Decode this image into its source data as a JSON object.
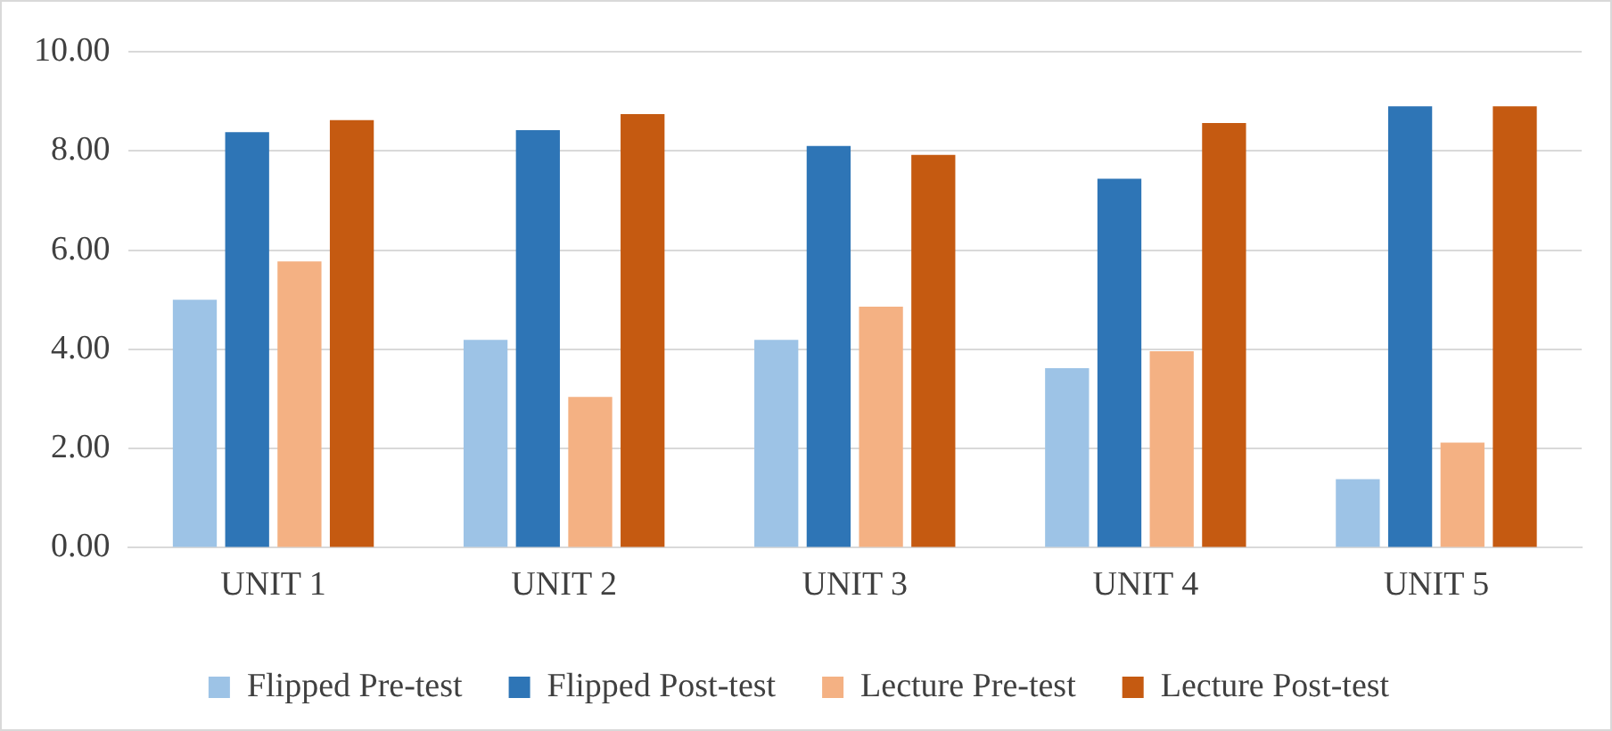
{
  "chart_data": {
    "type": "bar",
    "categories": [
      "UNIT 1",
      "UNIT 2",
      "UNIT 3",
      "UNIT 4",
      "UNIT 5"
    ],
    "series": [
      {
        "name": "Flipped Pre-test",
        "color": "#9dc3e6",
        "values": [
          5.0,
          4.19,
          4.19,
          3.62,
          1.38
        ]
      },
      {
        "name": "Flipped Post-test",
        "color": "#2e75b6",
        "values": [
          8.38,
          8.42,
          8.1,
          7.44,
          8.9
        ]
      },
      {
        "name": "Lecture Pre-test",
        "color": "#f4b183",
        "values": [
          5.77,
          3.04,
          4.86,
          3.96,
          2.12
        ]
      },
      {
        "name": "Lecture Post-test",
        "color": "#c55a11",
        "values": [
          8.62,
          8.74,
          7.92,
          8.56,
          8.9
        ]
      }
    ],
    "ylim": [
      0,
      10
    ],
    "yticks": [
      {
        "value": 0,
        "label": "0.00"
      },
      {
        "value": 2,
        "label": "2.00"
      },
      {
        "value": 4,
        "label": "4.00"
      },
      {
        "value": 6,
        "label": "6.00"
      },
      {
        "value": 8,
        "label": "8.00"
      },
      {
        "value": 10,
        "label": "10.00"
      }
    ],
    "grid": "y",
    "legend": "bottom"
  }
}
